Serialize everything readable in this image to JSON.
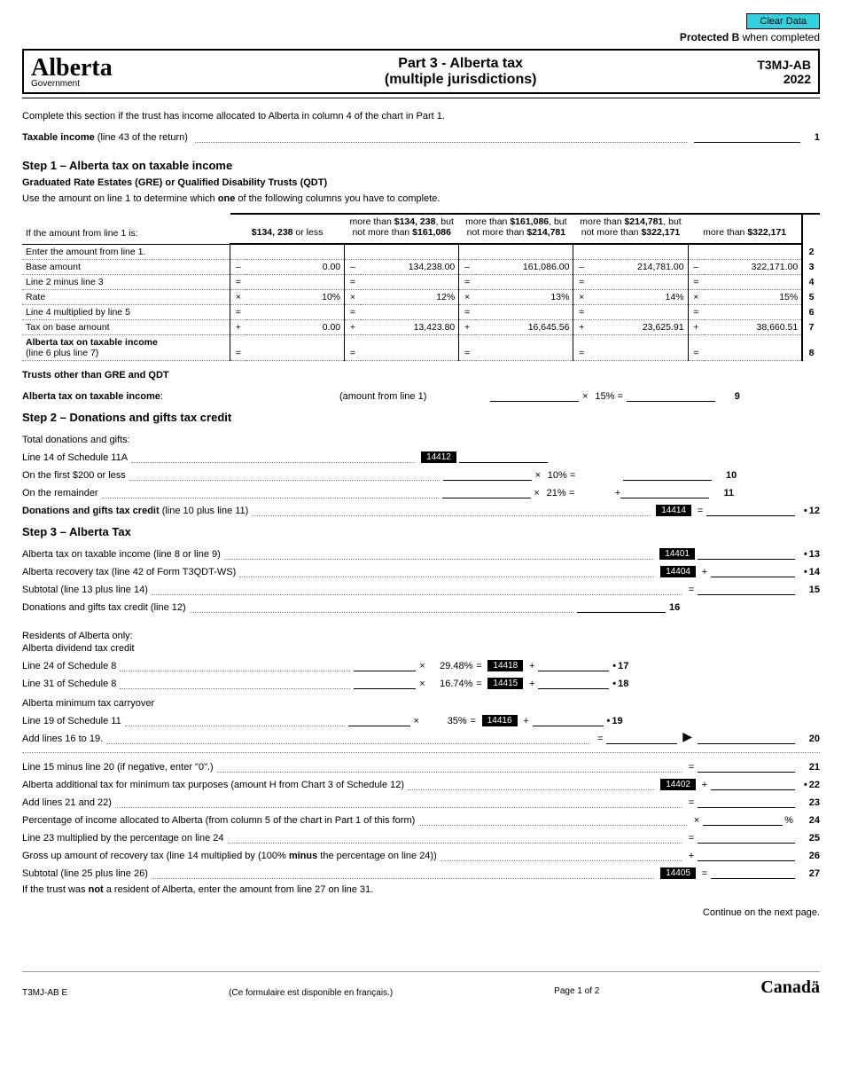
{
  "top": {
    "clear_btn": "Clear Data",
    "protected_b": "Protected B",
    "protected_suffix": " when completed"
  },
  "header": {
    "logo": "Alberta",
    "logo_sub": "Government",
    "title_line1": "Part 3 - Alberta tax",
    "title_line2": "(multiple jurisdictions)",
    "form_code": "T3MJ-AB",
    "year": "2022"
  },
  "intro": "Complete this section if the trust has income allocated to Alberta in column 4 of the chart in Part 1.",
  "taxable_income": {
    "label_bold": "Taxable income",
    "label_rest": " (line 43 of the return)",
    "line_num": "1"
  },
  "step1": {
    "heading": "Step 1 – Alberta tax on taxable income",
    "sub": "Graduated Rate Estates (GRE) or Qualified Disability Trusts (QDT)",
    "instr": "Use the amount on line 1 to determine which one of the following columns you have to complete.",
    "col_header_label": "If the amount from line 1 is:",
    "columns": [
      {
        "header_a": "$134, 238",
        "header_b": " or less"
      },
      {
        "header_a": "more than ",
        "header_b": "$134, 238",
        "header_c": ", but not more than ",
        "header_d": "$161,086"
      },
      {
        "header_a": "more than ",
        "header_b": "$161,086",
        "header_c": ", but not more than ",
        "header_d": "$214,781"
      },
      {
        "header_a": "more than ",
        "header_b": "$214,781",
        "header_c": ", but not more than ",
        "header_d": "$322,171"
      },
      {
        "header_a": "more than ",
        "header_b": "$322,171"
      }
    ],
    "rows": [
      {
        "label": "Enter the amount from line 1.",
        "ops": [
          "",
          "",
          "",
          "",
          ""
        ],
        "vals": [
          "",
          "",
          "",
          "",
          ""
        ],
        "rn": "2"
      },
      {
        "label": "Base amount",
        "ops": [
          "–",
          "–",
          "–",
          "–",
          "–"
        ],
        "vals": [
          "0.00",
          "134,238.00",
          "161,086.00",
          "214,781.00",
          "322,171.00"
        ],
        "rn": "3"
      },
      {
        "label": "Line 2 minus line 3",
        "ops": [
          "=",
          "=",
          "=",
          "=",
          "="
        ],
        "vals": [
          "",
          "",
          "",
          "",
          ""
        ],
        "rn": "4"
      },
      {
        "label": "Rate",
        "ops": [
          "×",
          "×",
          "×",
          "×",
          "×"
        ],
        "vals": [
          "10%",
          "12%",
          "13%",
          "14%",
          "15%"
        ],
        "rn": "5"
      },
      {
        "label": "Line 4 multiplied by line 5",
        "ops": [
          "=",
          "=",
          "=",
          "=",
          "="
        ],
        "vals": [
          "",
          "",
          "",
          "",
          ""
        ],
        "rn": "6"
      },
      {
        "label": "Tax on base amount",
        "ops": [
          "+",
          "+",
          "+",
          "+",
          "+"
        ],
        "vals": [
          "0.00",
          "13,423.80",
          "16,645.56",
          "23,625.91",
          "38,660.51"
        ],
        "rn": "7"
      },
      {
        "label_a": "Alberta tax on taxable income",
        "label_b": "(line 6 plus line 7)",
        "ops": [
          "=",
          "=",
          "=",
          "=",
          "="
        ],
        "vals": [
          "",
          "",
          "",
          "",
          ""
        ],
        "rn": "8",
        "bold": true
      }
    ],
    "other_trusts_heading": "Trusts other than GRE and QDT",
    "line9_label": "Alberta tax on taxable income",
    "line9_mid": "(amount from line 1)",
    "line9_pct": "15%",
    "line9_rn": "9"
  },
  "step2": {
    "heading": "Step 2 – Donations and gifts tax credit",
    "total_label": "Total donations and gifts:",
    "line14_label": "Line 14 of Schedule 11A",
    "code_14412": "14412",
    "first200": {
      "label": "On the first $200 or less",
      "pct": "10%",
      "rn": "10"
    },
    "remainder": {
      "label": "On the remainder",
      "pct": "21%",
      "rn": "11"
    },
    "credit": {
      "label_a": "Donations and gifts tax credit",
      "label_b": " (line 10 plus line 11)",
      "code": "14414",
      "rn": "12"
    }
  },
  "step3": {
    "heading": "Step 3 – Alberta Tax",
    "l13": {
      "label": "Alberta tax on taxable income (line 8 or line 9)",
      "code": "14401",
      "rn": "13"
    },
    "l14": {
      "label": "Alberta recovery tax (line 42 of Form T3QDT-WS)",
      "code": "14404",
      "rn": "14"
    },
    "l15": {
      "label": "Subtotal (line 13 plus line 14)",
      "rn": "15"
    },
    "l16": {
      "label": "Donations and gifts tax credit (line 12)",
      "rn": "16"
    },
    "residents": "Residents of Alberta only:",
    "div_credit": "Alberta dividend tax credit",
    "l17": {
      "label": "Line 24 of Schedule 8",
      "pct": "29.48%",
      "code": "14418",
      "rn": "17"
    },
    "l18": {
      "label": "Line 31 of Schedule 8",
      "pct": "16.74%",
      "code": "14415",
      "rn": "18"
    },
    "carryover": "Alberta minimum tax carryover",
    "l19": {
      "label": "Line 19 of Schedule 11",
      "pct": "35%",
      "code": "14416",
      "rn": "19"
    },
    "l20": {
      "label": "Add lines 16 to 19.",
      "rn": "20"
    },
    "l21": {
      "label": "Line 15 minus line 20 (if negative, enter \"0\".)",
      "rn": "21"
    },
    "l22": {
      "label": "Alberta additional tax for minimum tax purposes (amount H from Chart 3 of Schedule 12)",
      "code": "14402",
      "rn": "22"
    },
    "l23": {
      "label": "Add lines 21 and 22)",
      "rn": "23"
    },
    "l24": {
      "label": "Percentage of income allocated to Alberta (from column 5 of the chart in Part 1 of this form)",
      "rn": "24"
    },
    "l25": {
      "label": "Line 23 multiplied by the percentage on line 24",
      "rn": "25"
    },
    "l26": {
      "label_a": "Gross up amount of recovery tax (line 14 multiplied by (100% ",
      "label_b": "minus",
      "label_c": " the percentage on line 24))",
      "rn": "26"
    },
    "l27": {
      "label": "Subtotal (line 25 plus line 26)",
      "code": "14405",
      "rn": "27"
    },
    "note": "If the trust was not a resident of Alberta, enter the amount from line 27 on line 31.",
    "note_bold": "not"
  },
  "continue_text": "Continue on the next page.",
  "footer": {
    "code": "T3MJ-AB E",
    "center": "(Ce formulaire est disponible en français.)",
    "page": "Page 1 of 2",
    "canada": "Canadä"
  }
}
